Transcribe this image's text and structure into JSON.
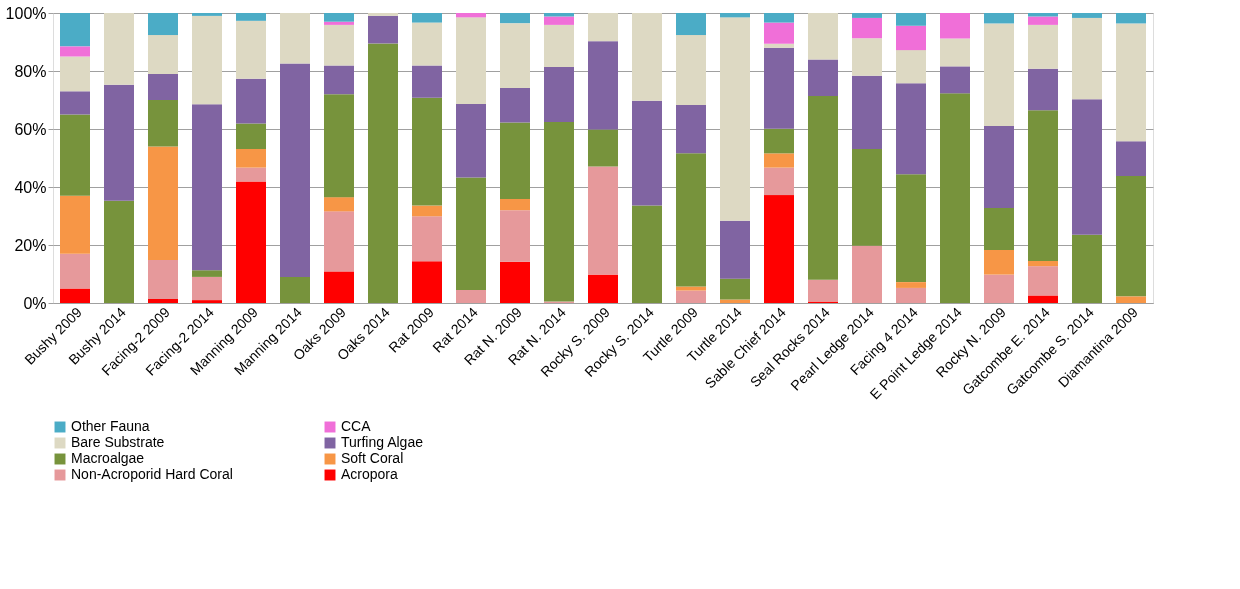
{
  "chart_data": {
    "type": "bar",
    "stacked": true,
    "grid": "y",
    "legend": "bottom",
    "categories": [
      "Bushy 2009",
      "Bushy 2014",
      "Facing-2 2009",
      "Facing-2 2014",
      "Manning 2009",
      "Manning 2014",
      "Oaks 2009",
      "Oaks 2014",
      "Rat 2009",
      "Rat 2014",
      "Rat N. 2009",
      "Rat N. 2014",
      "Rocky S. 2009",
      "Rocky S. 2014",
      "Turtle 2009",
      "Turtle 2014",
      "Sable Chief 2014",
      "Seal Rocks 2014",
      "Pearl Ledge 2014",
      "Facing 4 2014",
      "E Point Ledge 2014",
      "Rocky N. 2009",
      "Gatcombe E. 2014",
      "Gatcombe S. 2014",
      "Diamantina 2009"
    ],
    "ylim": [
      0,
      100
    ],
    "yticks": [
      {
        "value": 0,
        "label": "0%"
      },
      {
        "value": 20,
        "label": "20%"
      },
      {
        "value": 40,
        "label": "40%"
      },
      {
        "value": 60,
        "label": "60%"
      },
      {
        "value": 80,
        "label": "80%"
      },
      {
        "value": 100,
        "label": "100%"
      }
    ],
    "series": [
      {
        "name": "Acropora",
        "color": "#ff0000",
        "values": [
          5,
          0,
          1.4,
          1,
          41.9,
          0,
          10.9,
          0,
          14.4,
          0,
          14.2,
          0,
          9.8,
          0,
          0,
          0,
          37.2,
          0.5,
          0,
          0,
          0,
          0,
          2.6,
          0,
          0
        ]
      },
      {
        "name": "Non-Acroporid Hard Coral",
        "color": "#e6999b",
        "values": [
          12,
          0,
          13.4,
          8,
          4.8,
          0,
          20.7,
          0,
          15.5,
          4.5,
          17.8,
          0.5,
          37.3,
          0,
          4.3,
          0,
          9.5,
          7.5,
          19.7,
          5.2,
          0,
          9.8,
          10.1,
          0,
          0
        ]
      },
      {
        "name": "Soft Coral",
        "color": "#f79646",
        "values": [
          20,
          0,
          39.2,
          0,
          6.4,
          0,
          4.9,
          0,
          3.7,
          0,
          3.9,
          0,
          0,
          0,
          1.4,
          1.2,
          4.9,
          0,
          0,
          2,
          0,
          8.5,
          1.8,
          0,
          2.3
        ]
      },
      {
        "name": "Macroalgae",
        "color": "#77933c",
        "values": [
          28,
          35.3,
          16,
          2.3,
          8.8,
          9,
          35.5,
          89.5,
          37.2,
          38.8,
          26.3,
          61.9,
          12.7,
          33.6,
          45.9,
          7.2,
          8.5,
          63.4,
          33.4,
          37.2,
          72.3,
          14.5,
          52,
          23.5,
          41.5
        ]
      },
      {
        "name": "Turfing Algae",
        "color": "#8064a2",
        "values": [
          8,
          40,
          9,
          57.2,
          15.4,
          73.6,
          9.9,
          9.5,
          11.1,
          25.3,
          11.9,
          19,
          30.5,
          36.1,
          16.7,
          20,
          27.9,
          12.6,
          25.3,
          31.4,
          9.3,
          28.2,
          14.3,
          46.8,
          12
        ]
      },
      {
        "name": "Bare Substrate",
        "color": "#ddd9c3",
        "values": [
          12,
          24.7,
          13.4,
          30.5,
          20,
          17.4,
          14,
          1,
          14.8,
          29.9,
          22.4,
          14.5,
          9.7,
          30.3,
          24.1,
          70.1,
          1.4,
          16,
          12.9,
          11.4,
          9.6,
          35.4,
          15.1,
          28,
          40.6
        ]
      },
      {
        "name": "CCA",
        "color": "#f06fd8",
        "values": [
          3.5,
          0,
          0,
          0,
          0,
          0,
          1.1,
          0,
          0,
          1.5,
          0,
          2.9,
          0,
          0,
          0,
          0,
          7.3,
          0,
          7,
          8.4,
          8.8,
          0,
          2.9,
          0,
          0
        ]
      },
      {
        "name": "Other Fauna",
        "color": "#4bacc6",
        "values": [
          11.5,
          0,
          7.6,
          1,
          2.7,
          0,
          3,
          0,
          3.3,
          0,
          3.5,
          1.2,
          0,
          0,
          7.6,
          1.5,
          3.3,
          0,
          1.7,
          4.4,
          0,
          3.6,
          1.2,
          1.7,
          3.6
        ]
      }
    ]
  }
}
